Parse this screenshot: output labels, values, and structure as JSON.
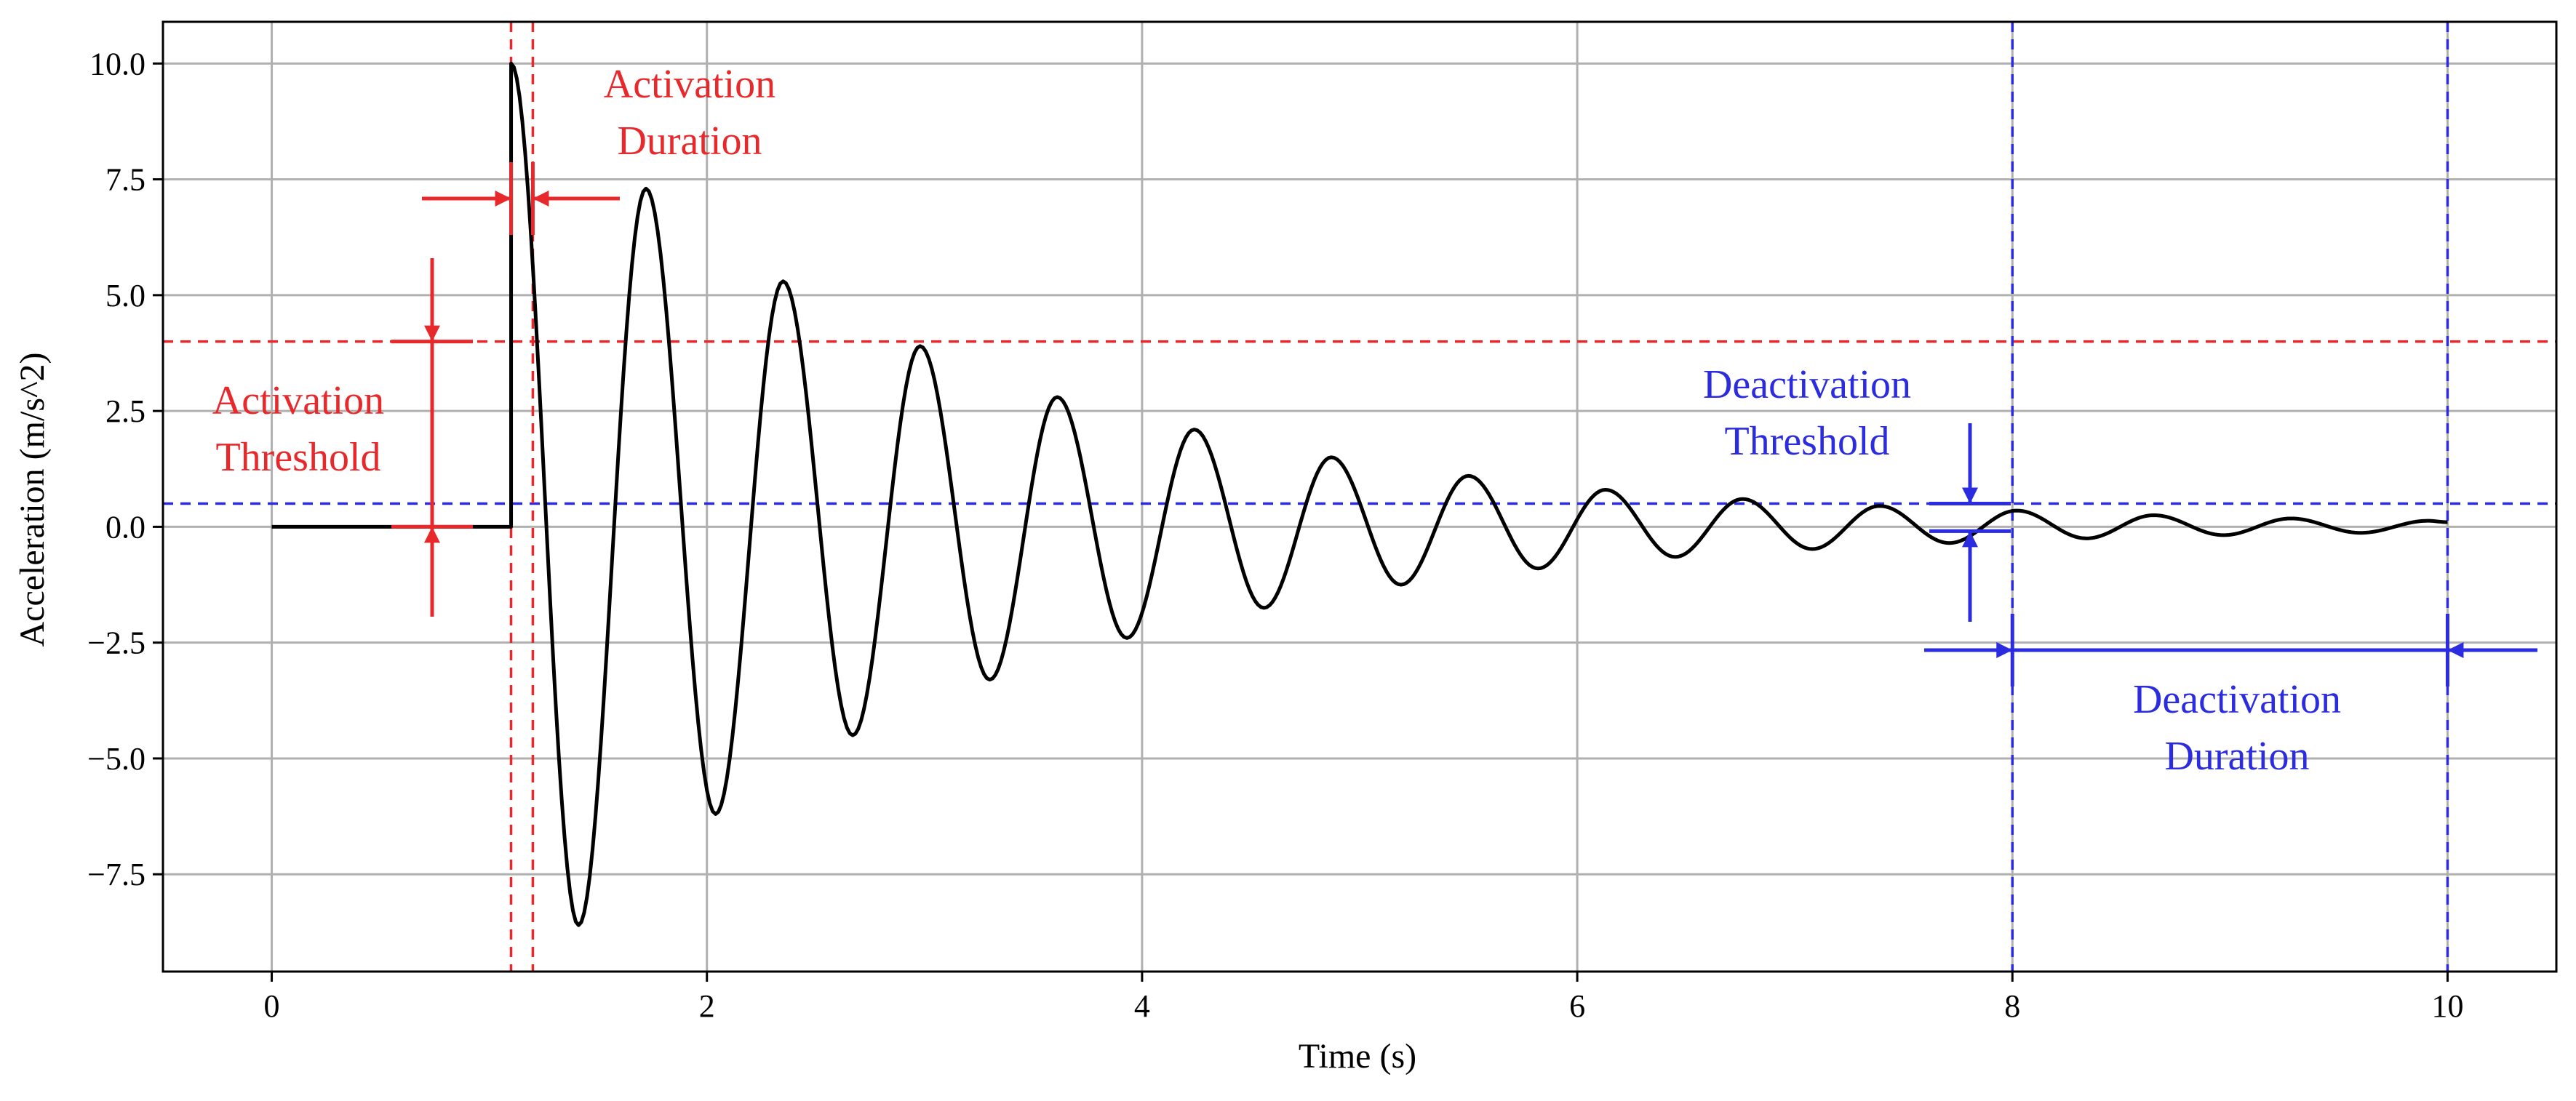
{
  "chart_data": {
    "type": "line",
    "xlabel": "Time (s)",
    "ylabel": "Acceleration (m/s^2)",
    "xlim": [
      -0.5,
      10.5
    ],
    "ylim": [
      -9.6,
      10.9
    ],
    "xticks": [
      0,
      2,
      4,
      6,
      8,
      10
    ],
    "xtick_labels": [
      "0",
      "2",
      "4",
      "6",
      "8",
      "10"
    ],
    "yticks": [
      10.0,
      7.5,
      5.0,
      2.5,
      0.0,
      -2.5,
      -5.0,
      -7.5
    ],
    "ytick_labels": [
      "10.0",
      "7.5",
      "5.0",
      "2.5",
      "0.0",
      "−2.5",
      "−5.0",
      "−7.5"
    ],
    "grid": true,
    "signal": {
      "description_free": true,
      "pre_activation": {
        "x": [
          0,
          1.1
        ],
        "y": [
          0,
          0
        ]
      },
      "onset_x": 1.1,
      "peak_y": 10.0,
      "end_x": 10.0,
      "peaks": [
        {
          "x": 1.1,
          "y": 10.0
        },
        {
          "x": 1.41,
          "y": -8.6
        },
        {
          "x": 1.72,
          "y": 7.3
        },
        {
          "x": 2.04,
          "y": -6.2
        },
        {
          "x": 2.35,
          "y": 5.3
        },
        {
          "x": 2.67,
          "y": -4.5
        },
        {
          "x": 2.98,
          "y": 3.9
        },
        {
          "x": 3.3,
          "y": -3.3
        },
        {
          "x": 3.61,
          "y": 2.8
        },
        {
          "x": 3.93,
          "y": -2.4
        },
        {
          "x": 4.24,
          "y": 2.1
        },
        {
          "x": 4.56,
          "y": -1.75
        },
        {
          "x": 4.87,
          "y": 1.5
        },
        {
          "x": 5.19,
          "y": -1.25
        },
        {
          "x": 5.5,
          "y": 1.1
        },
        {
          "x": 5.82,
          "y": -0.9
        },
        {
          "x": 6.13,
          "y": 0.8
        },
        {
          "x": 6.45,
          "y": -0.65
        },
        {
          "x": 6.76,
          "y": 0.6
        },
        {
          "x": 7.08,
          "y": -0.48
        },
        {
          "x": 7.39,
          "y": 0.45
        },
        {
          "x": 7.71,
          "y": -0.35
        },
        {
          "x": 8.02,
          "y": 0.35
        },
        {
          "x": 8.34,
          "y": -0.25
        },
        {
          "x": 8.65,
          "y": 0.25
        },
        {
          "x": 8.97,
          "y": -0.18
        },
        {
          "x": 9.28,
          "y": 0.18
        },
        {
          "x": 9.6,
          "y": -0.13
        },
        {
          "x": 9.91,
          "y": 0.13
        },
        {
          "x": 10.0,
          "y": 0.1
        }
      ]
    },
    "reference_lines": {
      "activation_threshold_y": 4.0,
      "deactivation_threshold_y": 0.5,
      "activation_start_x": 1.1,
      "activation_end_x": 1.2,
      "deactivation_start_x": 8.0,
      "deactivation_end_x": 10.0
    },
    "annotations": {
      "activation_duration": [
        "Activation",
        "Duration"
      ],
      "activation_threshold": [
        "Activation",
        "Threshold"
      ],
      "deactivation_threshold": [
        "Deactivation",
        "Threshold"
      ],
      "deactivation_duration": [
        "Deactivation",
        "Duration"
      ]
    },
    "colors": {
      "signal": "#000000",
      "activation": "#e8292c",
      "deactivation": "#2b2be0",
      "grid": "#b0b0b0",
      "axes": "#000000"
    }
  }
}
